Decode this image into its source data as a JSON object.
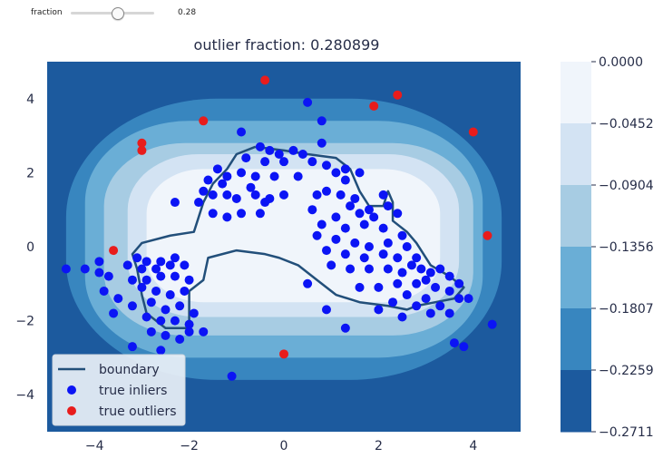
{
  "widget": {
    "label": "fraction",
    "value_text": "0.28",
    "value": 0.28,
    "min": 0.0,
    "max": 0.5
  },
  "chart_data": {
    "type": "contour",
    "title": "outlier fraction: 0.280899",
    "xlim": [
      -5,
      5
    ],
    "ylim": [
      -5,
      5
    ],
    "x_ticks": [
      -4,
      -2,
      0,
      2,
      4
    ],
    "y_ticks": [
      -4,
      -2,
      0,
      2,
      4
    ],
    "x_tick_labels": [
      "−4",
      "−2",
      "0",
      "2",
      "4"
    ],
    "y_tick_labels": [
      "−4",
      "−2",
      "0",
      "2",
      "4"
    ],
    "colorbar": {
      "tick_labels": [
        "0.0000",
        "−0.0452",
        "−0.0904",
        "−0.1356",
        "−0.1807",
        "−0.2259",
        "−0.2711"
      ],
      "levels": [
        0.0,
        -0.0452,
        -0.0904,
        -0.1356,
        -0.1807,
        -0.2259,
        -0.2711
      ],
      "colors": [
        "#f0f5fb",
        "#d3e3f3",
        "#a7cce3",
        "#6aaed6",
        "#3886bf",
        "#1c5a9e",
        "#0d3c7a"
      ]
    },
    "legend": {
      "position": "lower-left",
      "entries": [
        {
          "label": "boundary",
          "kind": "line",
          "color": "#224f7a"
        },
        {
          "label": "true inliers",
          "kind": "marker",
          "color": "#0b14f5"
        },
        {
          "label": "true outliers",
          "kind": "marker",
          "color": "#e81c1c"
        }
      ]
    },
    "colors": {
      "inlier": "#0b14f5",
      "outlier": "#e81c1c",
      "boundary": "#224f7a"
    },
    "outliers": [
      [
        -0.4,
        4.5
      ],
      [
        -1.7,
        3.4
      ],
      [
        -3.0,
        2.8
      ],
      [
        -3.0,
        2.6
      ],
      [
        1.9,
        3.8
      ],
      [
        2.4,
        4.1
      ],
      [
        4.0,
        3.1
      ],
      [
        4.3,
        0.3
      ],
      [
        -3.6,
        -0.1
      ],
      [
        0.0,
        -2.9
      ]
    ],
    "inliers": [
      [
        0.5,
        3.9
      ],
      [
        0.8,
        3.4
      ],
      [
        -0.9,
        3.1
      ],
      [
        0.8,
        2.8
      ],
      [
        -0.5,
        2.7
      ],
      [
        -0.3,
        2.6
      ],
      [
        -0.1,
        2.5
      ],
      [
        0.2,
        2.6
      ],
      [
        0.4,
        2.5
      ],
      [
        -0.8,
        2.4
      ],
      [
        -0.4,
        2.3
      ],
      [
        0.0,
        2.3
      ],
      [
        0.6,
        2.3
      ],
      [
        0.9,
        2.2
      ],
      [
        1.3,
        2.1
      ],
      [
        -1.4,
        2.1
      ],
      [
        -1.2,
        1.9
      ],
      [
        -0.9,
        2.0
      ],
      [
        -0.6,
        1.9
      ],
      [
        -0.2,
        1.9
      ],
      [
        0.3,
        1.9
      ],
      [
        -1.6,
        1.8
      ],
      [
        -1.3,
        1.7
      ],
      [
        -0.7,
        1.6
      ],
      [
        1.1,
        2.0
      ],
      [
        1.6,
        2.0
      ],
      [
        1.3,
        1.8
      ],
      [
        -1.7,
        1.5
      ],
      [
        -1.5,
        1.4
      ],
      [
        -1.2,
        1.4
      ],
      [
        -1.0,
        1.3
      ],
      [
        -0.6,
        1.4
      ],
      [
        -0.3,
        1.3
      ],
      [
        0.0,
        1.4
      ],
      [
        0.7,
        1.4
      ],
      [
        0.9,
        1.5
      ],
      [
        1.2,
        1.4
      ],
      [
        1.5,
        1.3
      ],
      [
        2.1,
        1.4
      ],
      [
        -2.3,
        1.2
      ],
      [
        -1.8,
        1.2
      ],
      [
        -0.4,
        1.2
      ],
      [
        0.6,
        1.0
      ],
      [
        1.4,
        1.1
      ],
      [
        1.8,
        1.0
      ],
      [
        2.2,
        1.1
      ],
      [
        -1.5,
        0.9
      ],
      [
        -1.2,
        0.8
      ],
      [
        -0.9,
        0.9
      ],
      [
        -0.5,
        0.9
      ],
      [
        1.1,
        0.8
      ],
      [
        1.6,
        0.9
      ],
      [
        1.9,
        0.8
      ],
      [
        2.4,
        0.9
      ],
      [
        0.8,
        0.6
      ],
      [
        1.3,
        0.5
      ],
      [
        1.7,
        0.6
      ],
      [
        2.1,
        0.5
      ],
      [
        2.5,
        0.3
      ],
      [
        0.7,
        0.3
      ],
      [
        1.1,
        0.2
      ],
      [
        1.5,
        0.1
      ],
      [
        1.8,
        0.0
      ],
      [
        2.2,
        0.1
      ],
      [
        2.6,
        0.0
      ],
      [
        0.9,
        -0.1
      ],
      [
        1.3,
        -0.2
      ],
      [
        1.7,
        -0.3
      ],
      [
        2.1,
        -0.2
      ],
      [
        2.4,
        -0.3
      ],
      [
        2.8,
        -0.3
      ],
      [
        1.0,
        -0.5
      ],
      [
        1.4,
        -0.6
      ],
      [
        1.8,
        -0.6
      ],
      [
        2.2,
        -0.6
      ],
      [
        2.5,
        -0.7
      ],
      [
        2.7,
        -0.5
      ],
      [
        2.9,
        -0.6
      ],
      [
        3.1,
        -0.7
      ],
      [
        3.3,
        -0.6
      ],
      [
        3.5,
        -0.8
      ],
      [
        3.0,
        -0.9
      ],
      [
        2.8,
        -1.0
      ],
      [
        2.4,
        -1.0
      ],
      [
        2.0,
        -1.1
      ],
      [
        1.6,
        -1.1
      ],
      [
        3.2,
        -1.1
      ],
      [
        3.5,
        -1.2
      ],
      [
        2.6,
        -1.3
      ],
      [
        3.0,
        -1.4
      ],
      [
        2.3,
        -1.5
      ],
      [
        2.8,
        -1.6
      ],
      [
        3.3,
        -1.6
      ],
      [
        3.7,
        -1.0
      ],
      [
        3.1,
        -1.8
      ],
      [
        2.5,
        -1.9
      ],
      [
        3.7,
        -1.4
      ],
      [
        3.5,
        -1.8
      ],
      [
        -3.9,
        -0.4
      ],
      [
        -4.2,
        -0.6
      ],
      [
        -3.9,
        -0.7
      ],
      [
        -3.7,
        -0.8
      ],
      [
        -3.1,
        -0.3
      ],
      [
        -2.9,
        -0.4
      ],
      [
        -2.6,
        -0.4
      ],
      [
        -2.3,
        -0.3
      ],
      [
        -3.3,
        -0.5
      ],
      [
        -3.0,
        -0.6
      ],
      [
        -2.7,
        -0.6
      ],
      [
        -2.4,
        -0.5
      ],
      [
        -2.1,
        -0.5
      ],
      [
        -3.2,
        -0.9
      ],
      [
        -2.9,
        -0.9
      ],
      [
        -2.6,
        -0.8
      ],
      [
        -2.3,
        -0.8
      ],
      [
        -2.0,
        -0.9
      ],
      [
        -3.8,
        -1.2
      ],
      [
        -3.5,
        -1.4
      ],
      [
        -3.0,
        -1.1
      ],
      [
        -2.7,
        -1.2
      ],
      [
        -2.4,
        -1.3
      ],
      [
        -2.1,
        -1.2
      ],
      [
        -3.6,
        -1.8
      ],
      [
        -3.2,
        -1.6
      ],
      [
        -2.8,
        -1.5
      ],
      [
        -2.5,
        -1.7
      ],
      [
        -2.2,
        -1.6
      ],
      [
        -1.9,
        -1.8
      ],
      [
        -2.9,
        -1.9
      ],
      [
        -2.6,
        -2.0
      ],
      [
        -2.3,
        -2.0
      ],
      [
        -2.0,
        -2.1
      ],
      [
        -2.8,
        -2.3
      ],
      [
        -2.5,
        -2.4
      ],
      [
        -2.2,
        -2.5
      ],
      [
        -2.0,
        -2.3
      ],
      [
        -1.7,
        -2.3
      ],
      [
        -3.2,
        -2.7
      ],
      [
        -2.6,
        -2.8
      ],
      [
        -1.1,
        -3.5
      ],
      [
        -4.6,
        -0.6
      ],
      [
        3.6,
        -2.6
      ],
      [
        3.8,
        -2.7
      ],
      [
        4.4,
        -2.1
      ],
      [
        0.5,
        -1.0
      ],
      [
        0.9,
        -1.7
      ],
      [
        2.0,
        -1.7
      ],
      [
        3.9,
        -1.4
      ],
      [
        1.3,
        -2.2
      ]
    ],
    "boundary": [
      [
        -0.6,
        2.7
      ],
      [
        0.0,
        2.6
      ],
      [
        0.5,
        2.5
      ],
      [
        1.1,
        2.4
      ],
      [
        1.4,
        2.1
      ],
      [
        1.6,
        1.5
      ],
      [
        1.8,
        1.1
      ],
      [
        2.1,
        1.1
      ],
      [
        2.2,
        1.5
      ],
      [
        2.3,
        1.2
      ],
      [
        2.3,
        0.7
      ],
      [
        2.6,
        0.4
      ],
      [
        2.8,
        0.1
      ],
      [
        3.1,
        -0.5
      ],
      [
        3.5,
        -0.8
      ],
      [
        3.8,
        -1.1
      ],
      [
        3.6,
        -1.4
      ],
      [
        3.2,
        -1.5
      ],
      [
        2.8,
        -1.6
      ],
      [
        2.6,
        -1.7
      ],
      [
        2.2,
        -1.6
      ],
      [
        1.6,
        -1.5
      ],
      [
        1.1,
        -1.3
      ],
      [
        0.7,
        -0.9
      ],
      [
        0.3,
        -0.5
      ],
      [
        -0.1,
        -0.3
      ],
      [
        -0.4,
        -0.2
      ],
      [
        -1.0,
        -0.1
      ],
      [
        -1.6,
        -0.3
      ],
      [
        -1.7,
        -0.9
      ],
      [
        -2.0,
        -1.2
      ],
      [
        -2.0,
        -1.6
      ],
      [
        -2.0,
        -2.2
      ],
      [
        -2.5,
        -2.2
      ],
      [
        -2.9,
        -1.8
      ],
      [
        -3.0,
        -1.3
      ],
      [
        -3.1,
        -0.6
      ],
      [
        -3.2,
        -0.2
      ],
      [
        -3.0,
        0.1
      ],
      [
        -2.4,
        0.3
      ],
      [
        -1.9,
        0.4
      ],
      [
        -1.8,
        0.8
      ],
      [
        -1.7,
        1.2
      ],
      [
        -1.5,
        1.7
      ],
      [
        -1.2,
        2.1
      ],
      [
        -1.0,
        2.5
      ],
      [
        -0.6,
        2.7
      ]
    ]
  }
}
